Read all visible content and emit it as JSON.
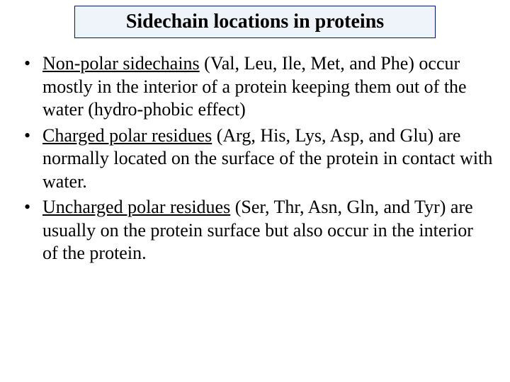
{
  "title": "Sidechain locations in proteins",
  "bullets": [
    {
      "lead": "Non-polar sidechains",
      "rest": " (Val, Leu, Ile, Met, and Phe) occur mostly in the interior of a protein keeping them out of the water (hydro-phobic effect)"
    },
    {
      "lead": "Charged polar residues",
      "rest": " (Arg, His, Lys, Asp, and Glu) are normally located on the surface of the protein in contact with water."
    },
    {
      "lead": "Uncharged polar residues",
      "rest": " (Ser, Thr, Asn, Gln, and Tyr) are usually on the protein surface but also occur in the interior of the protein."
    }
  ],
  "colors": {
    "title_bg": "#eef4fa",
    "title_border": "#001a66",
    "text": "#000000",
    "background": "#ffffff"
  },
  "typography": {
    "title_fontsize": 28,
    "body_fontsize": 26,
    "font_family": "Times New Roman"
  }
}
